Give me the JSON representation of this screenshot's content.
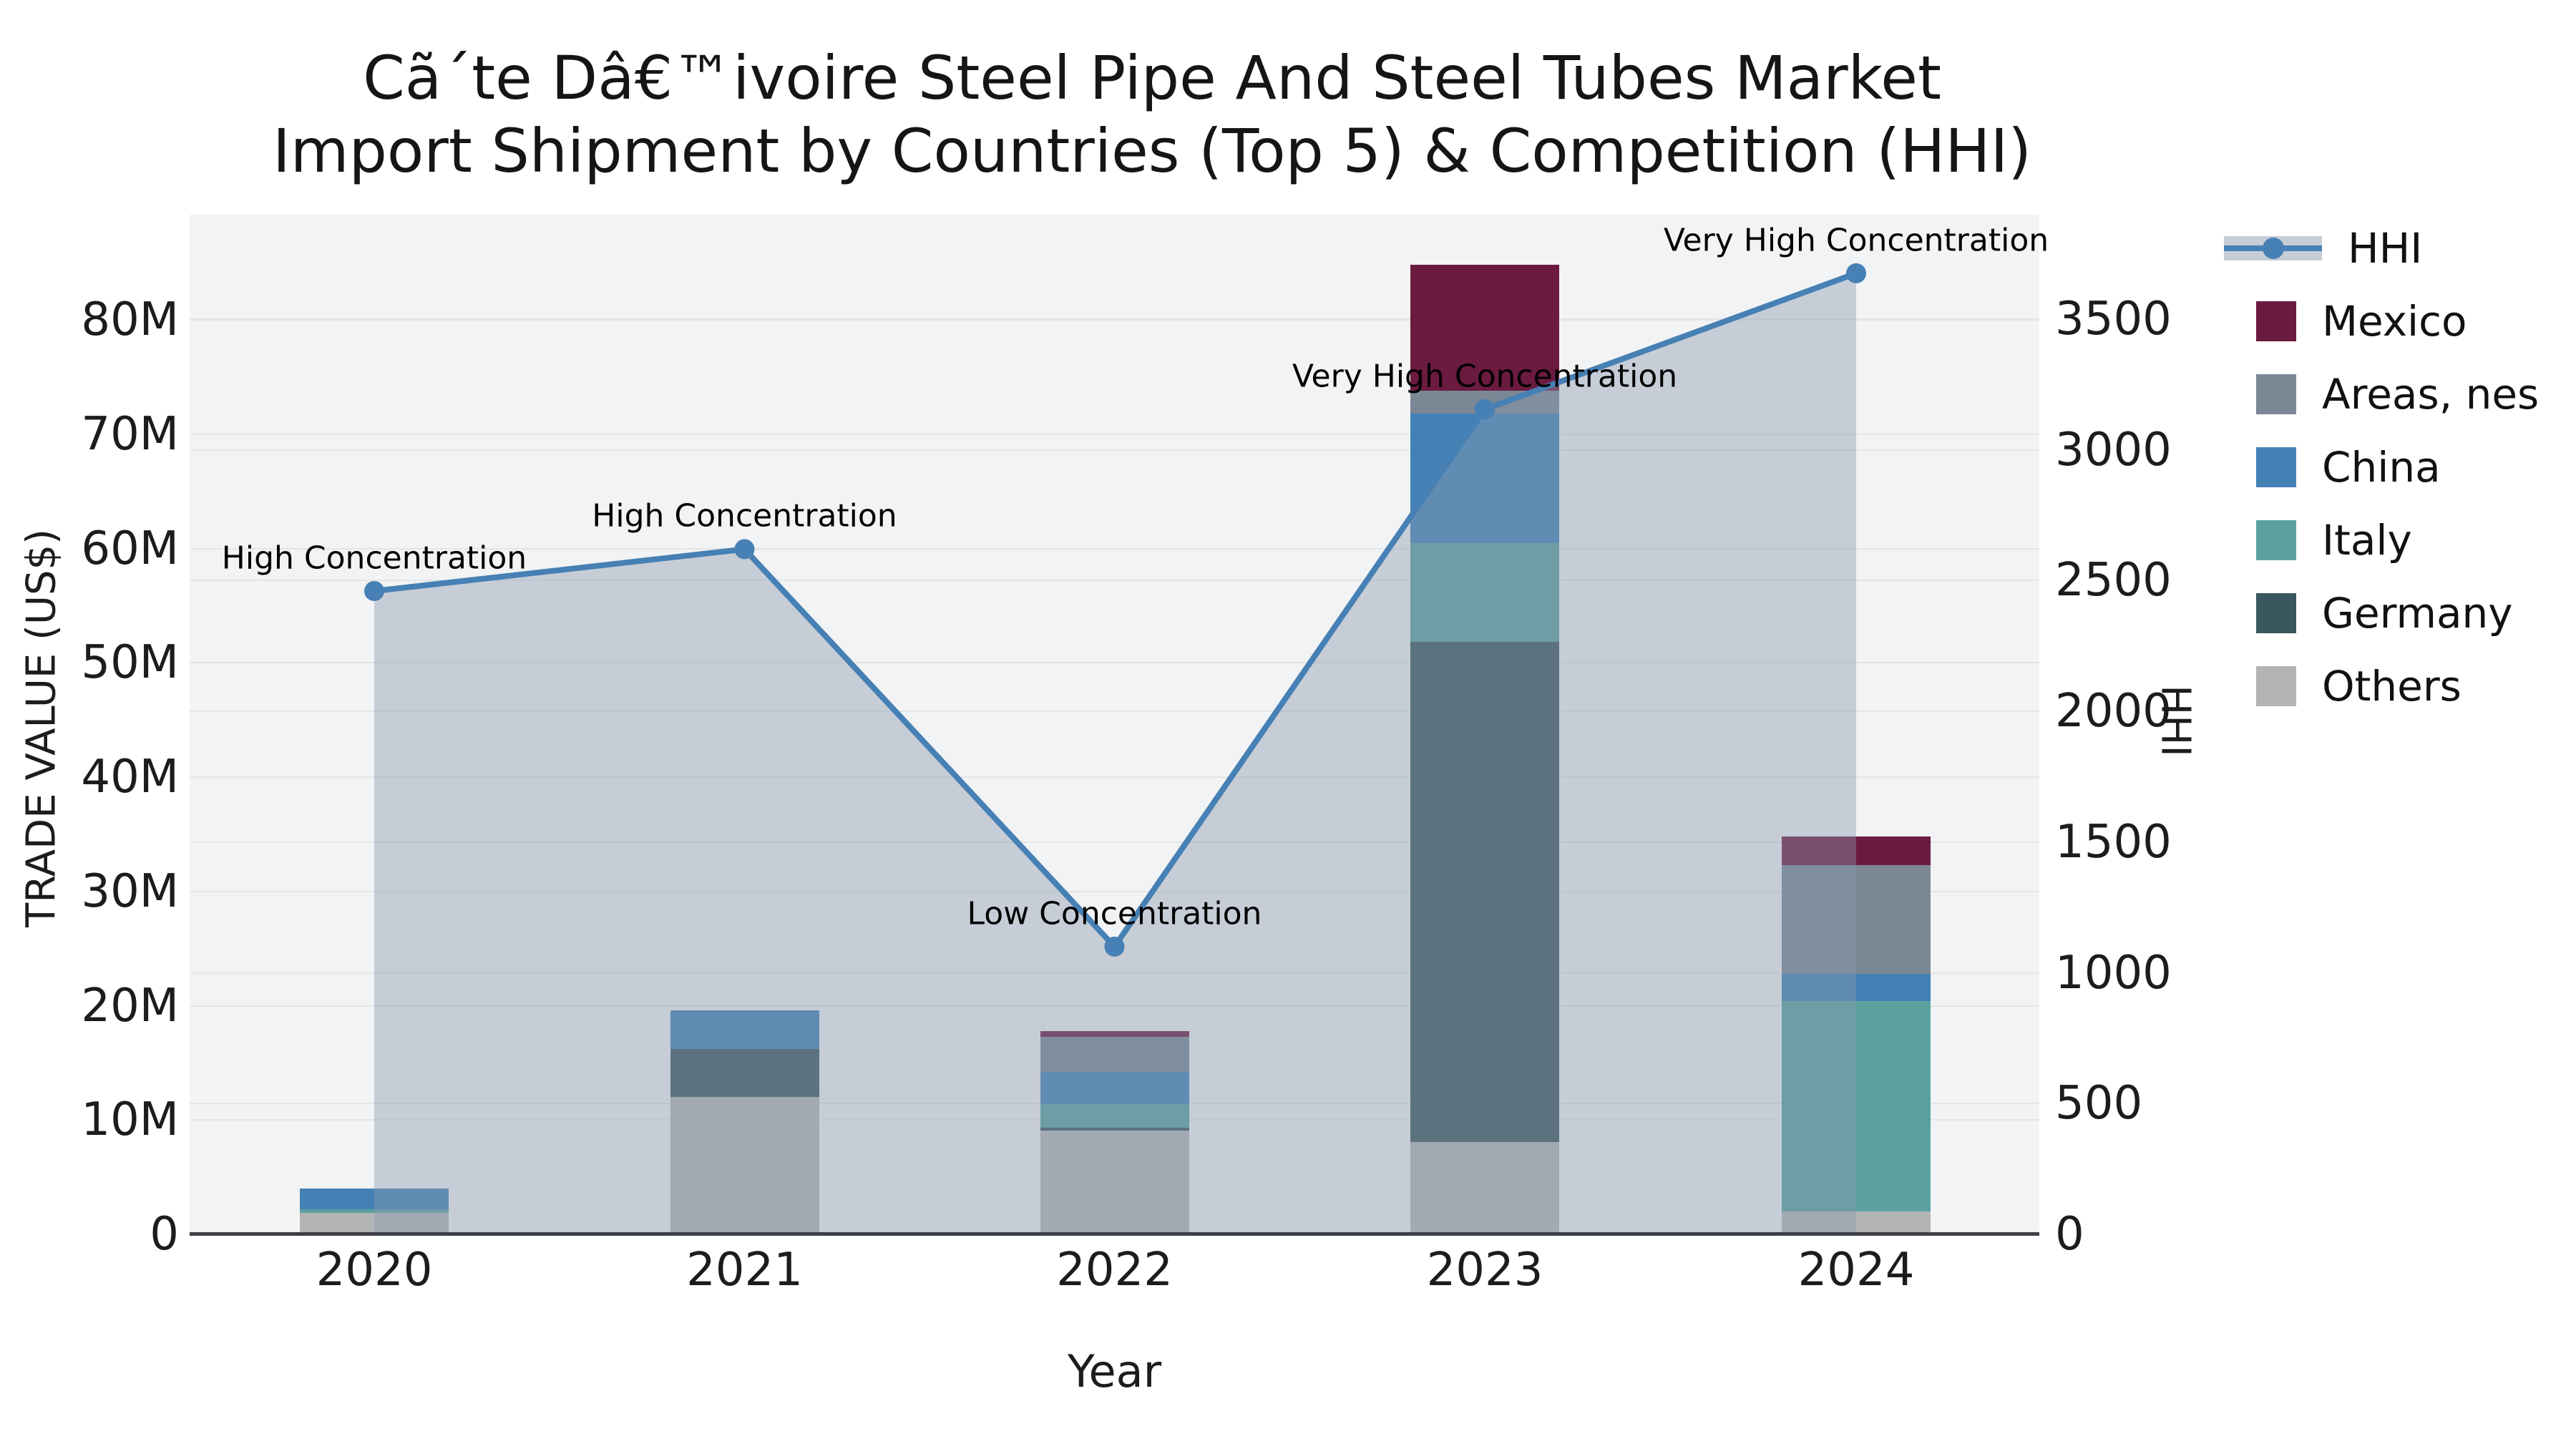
{
  "title": {
    "line1": "Cã´te Dâ€™ivoire Steel Pipe And Steel Tubes Market",
    "line2": "Import Shipment by Countries (Top 5) & Competition (HHI)"
  },
  "axes": {
    "x": {
      "title": "Year",
      "tick_labels": [
        "2020",
        "2021",
        "2022",
        "2023",
        "2024"
      ]
    },
    "y_left": {
      "title": "TRADE VALUE (US$)",
      "tick_labels": [
        "0",
        "10M",
        "20M",
        "30M",
        "40M",
        "50M",
        "60M",
        "70M",
        "80M"
      ]
    },
    "y_right": {
      "title": "HHI",
      "tick_labels": [
        "0",
        "500",
        "1000",
        "1500",
        "2000",
        "2500",
        "3000",
        "3500"
      ]
    }
  },
  "legend": {
    "items": [
      {
        "label": "HHI",
        "type": "line",
        "color": "#4680b4"
      },
      {
        "label": "Mexico",
        "type": "box",
        "color": "#6b1a40"
      },
      {
        "label": "Areas, nes",
        "type": "box",
        "color": "#7b8795"
      },
      {
        "label": "China",
        "type": "box",
        "color": "#4381b5"
      },
      {
        "label": "Italy",
        "type": "box",
        "color": "#5ba19f"
      },
      {
        "label": "Germany",
        "type": "box",
        "color": "#3b575e"
      },
      {
        "label": "Others",
        "type": "box",
        "color": "#b3b5b5"
      }
    ]
  },
  "chart_data": {
    "type": "bar",
    "subtype": "stacked-bars-with-line",
    "categories": [
      "2020",
      "2021",
      "2022",
      "2023",
      "2024"
    ],
    "bar_value_unit": "million US$",
    "series": [
      {
        "name": "Others",
        "color": "#b3b5b5",
        "values": [
          1.9,
          12.0,
          9.1,
          8.1,
          2.0
        ]
      },
      {
        "name": "Germany",
        "color": "#3b575e",
        "values": [
          0,
          4.2,
          0.25,
          43.7,
          0
        ]
      },
      {
        "name": "Italy",
        "color": "#5ba19f",
        "values": [
          0.3,
          0,
          2.05,
          8.7,
          18.4
        ]
      },
      {
        "name": "China",
        "color": "#4381b5",
        "values": [
          1.8,
          3.4,
          2.8,
          11.3,
          2.4
        ]
      },
      {
        "name": "Areas, nes",
        "color": "#7b8795",
        "values": [
          0,
          0,
          3.1,
          2.0,
          9.5
        ]
      },
      {
        "name": "Mexico",
        "color": "#6b1a40",
        "values": [
          0,
          0,
          0.5,
          11.0,
          2.5
        ]
      }
    ],
    "bar_totals": [
      4.0,
      19.6,
      17.8,
      84.8,
      34.8
    ],
    "line_series": {
      "name": "HHI",
      "color": "#4680b4",
      "area_fill_color": "rgba(139,152,173,0.42)",
      "values": [
        2460,
        2620,
        1100,
        3155,
        3675
      ]
    },
    "point_annotations": [
      "High Concentration",
      "High Concentration",
      "Low Concentration",
      "Very High Concentration",
      "Very High Concentration"
    ],
    "title": "Cã´te Dâ€™ivoire Steel Pipe And Steel Tubes Market Import Shipment by Countries (Top 5) & Competition (HHI)",
    "xlabel": "Year",
    "ylabel_left": "TRADE VALUE (US$)",
    "ylabel_right": "HHI",
    "y_left_ticks_millions": [
      0,
      10,
      20,
      30,
      40,
      50,
      60,
      70,
      80
    ],
    "y_right_ticks": [
      0,
      500,
      1000,
      1500,
      2000,
      2500,
      3000,
      3500
    ],
    "y_left_range_millions": [
      0,
      89.2
    ],
    "y_right_range": [
      0,
      3899
    ],
    "grid": true,
    "legend_position": "right-outside"
  }
}
